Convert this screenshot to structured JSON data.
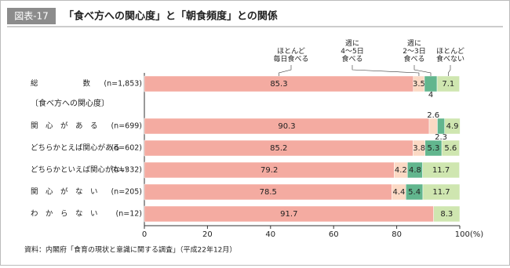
{
  "chart_data": {
    "type": "stacked_barh",
    "badge": "図表-17",
    "title": "「食べ方への関心度」と「朝食頻度」との関係",
    "section_label": "〔食べ方への関心度〕",
    "categories": [
      "総　　　　　　数",
      "関　心　が　あ　る",
      "どちらかとえば関心がある",
      "どちらかといえば関心がない",
      "関　心　が　な　い",
      "わ　か　ら　な　い"
    ],
    "n_labels": [
      "(n=1,853)",
      "(n=699)",
      "(n=602)",
      "(n=332)",
      "(n=205)",
      "(n=12)"
    ],
    "series": [
      {
        "name": "ほとんど\n毎日食べる",
        "color": "#f4aba1",
        "values": [
          85.3,
          90.3,
          85.2,
          79.2,
          78.5,
          91.7
        ]
      },
      {
        "name": "週に\n4～5日\n食べる",
        "color": "#fbd9c4",
        "values": [
          3.5,
          2.6,
          3.8,
          4.2,
          4.4,
          null
        ]
      },
      {
        "name": "週に\n2～3日\n食べる",
        "color": "#62b68e",
        "values": [
          4.0,
          2.3,
          5.3,
          4.8,
          5.4,
          null
        ]
      },
      {
        "name": "ほとんど\n食べない",
        "color": "#cfe6b0",
        "values": [
          7.1,
          4.9,
          5.6,
          11.7,
          11.7,
          8.3
        ]
      }
    ],
    "xlim": [
      0,
      100
    ],
    "xticks": [
      0,
      20,
      40,
      60,
      80,
      {
        "value": 100,
        "label": "100(%)"
      }
    ],
    "source": "資料：内閣府「食育の現状と意識に関する調査」（平成22年12月）"
  }
}
